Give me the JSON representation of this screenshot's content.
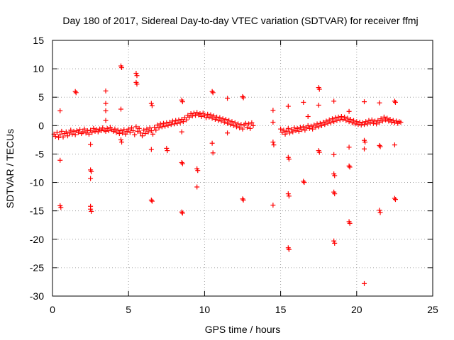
{
  "chart_data": {
    "type": "scatter",
    "title": "Day 180 of 2017, Sidereal Day-to-day VTEC variation (SDTVAR) for receiver ffmj",
    "xlabel": "GPS time / hours",
    "ylabel": "SDTVAR / TECUs",
    "xlim": [
      0,
      25
    ],
    "ylim": [
      -30,
      15
    ],
    "xticks": [
      0,
      5,
      10,
      15,
      20,
      25
    ],
    "yticks": [
      -30,
      -25,
      -20,
      -15,
      -10,
      -5,
      0,
      5,
      10,
      15
    ],
    "grid": true,
    "marker": "+",
    "color": "#ff0000",
    "series": [
      {
        "name": "SDTVAR",
        "points": [
          [
            0.1,
            -1.5
          ],
          [
            0.2,
            -1.9
          ],
          [
            0.3,
            -1.2
          ],
          [
            0.4,
            -2.1
          ],
          [
            0.5,
            -1.6
          ],
          [
            0.6,
            -1.0
          ],
          [
            0.7,
            -2.0
          ],
          [
            0.8,
            -1.4
          ],
          [
            0.9,
            -1.1
          ],
          [
            1.0,
            -1.8
          ],
          [
            1.1,
            -1.3
          ],
          [
            1.2,
            -0.8
          ],
          [
            1.3,
            -1.5
          ],
          [
            1.4,
            -1.0
          ],
          [
            1.5,
            -1.6
          ],
          [
            1.6,
            -0.9
          ],
          [
            1.7,
            -1.2
          ],
          [
            1.8,
            -0.7
          ],
          [
            1.9,
            -1.4
          ],
          [
            2.0,
            -1.1
          ],
          [
            2.1,
            -0.6
          ],
          [
            2.2,
            -1.3
          ],
          [
            2.3,
            -0.9
          ],
          [
            2.4,
            -1.5
          ],
          [
            2.5,
            -0.8
          ],
          [
            2.6,
            -1.2
          ],
          [
            2.7,
            -0.5
          ],
          [
            2.8,
            -1.0
          ],
          [
            2.9,
            -0.7
          ],
          [
            3.0,
            -1.1
          ],
          [
            3.1,
            -0.6
          ],
          [
            3.2,
            -0.9
          ],
          [
            3.3,
            -0.4
          ],
          [
            3.4,
            -0.8
          ],
          [
            3.5,
            -1.0
          ],
          [
            3.6,
            -0.5
          ],
          [
            3.7,
            -0.9
          ],
          [
            3.8,
            -0.3
          ],
          [
            3.9,
            -0.7
          ],
          [
            4.0,
            -1.0
          ],
          [
            4.1,
            -0.6
          ],
          [
            4.2,
            -1.2
          ],
          [
            4.3,
            -0.8
          ],
          [
            4.4,
            -1.4
          ],
          [
            4.5,
            -0.9
          ],
          [
            4.6,
            -1.3
          ],
          [
            4.7,
            -0.7
          ],
          [
            4.8,
            -1.5
          ],
          [
            4.9,
            -1.0
          ],
          [
            5.0,
            -0.6
          ],
          [
            5.1,
            -1.2
          ],
          [
            5.2,
            -0.4
          ],
          [
            5.3,
            -0.9
          ],
          [
            5.4,
            -1.6
          ],
          [
            5.5,
            -0.2
          ],
          [
            5.6,
            -1.0
          ],
          [
            5.7,
            -0.5
          ],
          [
            5.8,
            -1.3
          ],
          [
            5.9,
            -1.8
          ],
          [
            6.0,
            -0.8
          ],
          [
            6.1,
            -1.4
          ],
          [
            6.2,
            -0.6
          ],
          [
            6.3,
            -1.1
          ],
          [
            6.4,
            -0.4
          ],
          [
            6.5,
            -0.9
          ],
          [
            6.6,
            -1.5
          ],
          [
            6.7,
            -0.3
          ],
          [
            6.8,
            -0.8
          ],
          [
            6.9,
            0.1
          ],
          [
            7.0,
            -0.4
          ],
          [
            7.1,
            0.3
          ],
          [
            7.2,
            -0.2
          ],
          [
            7.3,
            0.4
          ],
          [
            7.4,
            -0.1
          ],
          [
            7.5,
            0.5
          ],
          [
            7.6,
            0.0
          ],
          [
            7.7,
            0.6
          ],
          [
            7.8,
            0.2
          ],
          [
            7.9,
            0.8
          ],
          [
            8.0,
            0.3
          ],
          [
            8.1,
            0.9
          ],
          [
            8.2,
            0.4
          ],
          [
            8.3,
            1.0
          ],
          [
            8.4,
            0.5
          ],
          [
            8.5,
            1.1
          ],
          [
            8.6,
            0.7
          ],
          [
            8.7,
            1.4
          ],
          [
            8.8,
            1.0
          ],
          [
            8.9,
            1.8
          ],
          [
            9.0,
            1.5
          ],
          [
            9.1,
            2.1
          ],
          [
            9.2,
            1.7
          ],
          [
            9.3,
            2.2
          ],
          [
            9.4,
            1.8
          ],
          [
            9.5,
            2.3
          ],
          [
            9.6,
            1.9
          ],
          [
            9.7,
            2.1
          ],
          [
            9.8,
            1.6
          ],
          [
            9.9,
            2.2
          ],
          [
            10.0,
            1.8
          ],
          [
            10.1,
            1.4
          ],
          [
            10.2,
            2.0
          ],
          [
            10.3,
            1.5
          ],
          [
            10.4,
            1.9
          ],
          [
            10.5,
            1.3
          ],
          [
            10.6,
            1.7
          ],
          [
            10.7,
            1.1
          ],
          [
            10.8,
            1.5
          ],
          [
            10.9,
            0.9
          ],
          [
            11.0,
            1.4
          ],
          [
            11.1,
            0.8
          ],
          [
            11.2,
            1.2
          ],
          [
            11.3,
            0.6
          ],
          [
            11.4,
            1.1
          ],
          [
            11.5,
            0.4
          ],
          [
            11.6,
            0.9
          ],
          [
            11.7,
            0.2
          ],
          [
            11.8,
            0.7
          ],
          [
            11.9,
            0.0
          ],
          [
            12.0,
            0.5
          ],
          [
            12.1,
            -0.2
          ],
          [
            12.2,
            0.3
          ],
          [
            12.3,
            -0.4
          ],
          [
            12.4,
            0.2
          ],
          [
            12.5,
            -0.6
          ],
          [
            12.6,
            0.1
          ],
          [
            12.7,
            0.4
          ],
          [
            12.8,
            -0.3
          ],
          [
            12.9,
            0.3
          ],
          [
            13.0,
            -0.5
          ],
          [
            13.1,
            0.5
          ],
          [
            13.2,
            0.0
          ],
          [
            15.0,
            -0.6
          ],
          [
            15.1,
            -1.2
          ],
          [
            15.2,
            -0.8
          ],
          [
            15.3,
            -1.5
          ],
          [
            15.4,
            -1.0
          ],
          [
            15.5,
            -0.5
          ],
          [
            15.6,
            -1.3
          ],
          [
            15.7,
            -0.7
          ],
          [
            15.8,
            -1.1
          ],
          [
            15.9,
            -0.4
          ],
          [
            16.0,
            -0.9
          ],
          [
            16.1,
            -0.5
          ],
          [
            16.2,
            -1.0
          ],
          [
            16.3,
            -0.3
          ],
          [
            16.4,
            -0.7
          ],
          [
            16.5,
            -0.2
          ],
          [
            16.6,
            -0.8
          ],
          [
            16.7,
            -0.4
          ],
          [
            16.8,
            0.0
          ],
          [
            16.9,
            -0.5
          ],
          [
            17.0,
            -0.1
          ],
          [
            17.1,
            -0.6
          ],
          [
            17.2,
            0.1
          ],
          [
            17.3,
            -0.3
          ],
          [
            17.4,
            0.3
          ],
          [
            17.5,
            -0.2
          ],
          [
            17.6,
            0.4
          ],
          [
            17.7,
            0.0
          ],
          [
            17.8,
            0.6
          ],
          [
            17.9,
            0.2
          ],
          [
            18.0,
            0.8
          ],
          [
            18.1,
            0.4
          ],
          [
            18.2,
            1.0
          ],
          [
            18.3,
            0.5
          ],
          [
            18.4,
            1.2
          ],
          [
            18.5,
            0.7
          ],
          [
            18.6,
            1.4
          ],
          [
            18.7,
            0.9
          ],
          [
            18.8,
            1.5
          ],
          [
            18.9,
            1.0
          ],
          [
            19.0,
            1.6
          ],
          [
            19.1,
            1.1
          ],
          [
            19.2,
            1.5
          ],
          [
            19.3,
            0.9
          ],
          [
            19.4,
            1.3
          ],
          [
            19.5,
            0.7
          ],
          [
            19.6,
            1.1
          ],
          [
            19.7,
            0.5
          ],
          [
            19.8,
            0.9
          ],
          [
            19.9,
            0.3
          ],
          [
            20.0,
            0.7
          ],
          [
            20.1,
            0.2
          ],
          [
            20.2,
            0.6
          ],
          [
            20.3,
            0.1
          ],
          [
            20.4,
            0.5
          ],
          [
            20.5,
            0.2
          ],
          [
            20.6,
            0.7
          ],
          [
            20.7,
            0.3
          ],
          [
            20.8,
            0.9
          ],
          [
            20.9,
            0.5
          ],
          [
            21.0,
            1.0
          ],
          [
            21.1,
            0.4
          ],
          [
            21.2,
            0.8
          ],
          [
            21.3,
            0.3
          ],
          [
            21.4,
            0.9
          ],
          [
            21.5,
            0.6
          ],
          [
            21.6,
            1.2
          ],
          [
            21.7,
            0.8
          ],
          [
            21.8,
            1.5
          ],
          [
            21.9,
            1.0
          ],
          [
            22.0,
            1.3
          ],
          [
            22.1,
            0.8
          ],
          [
            22.2,
            1.1
          ],
          [
            22.3,
            0.6
          ],
          [
            22.4,
            0.9
          ],
          [
            22.5,
            0.5
          ],
          [
            22.6,
            0.8
          ],
          [
            22.7,
            0.4
          ],
          [
            22.8,
            0.7
          ],
          [
            22.9,
            0.6
          ],
          [
            0.5,
            2.6
          ],
          [
            0.5,
            -6.1
          ],
          [
            0.5,
            -14.1
          ],
          [
            0.55,
            -14.4
          ],
          [
            1.5,
            6.0
          ],
          [
            1.55,
            5.8
          ],
          [
            2.5,
            -3.3
          ],
          [
            2.5,
            -7.8
          ],
          [
            2.55,
            -8.1
          ],
          [
            2.5,
            -9.3
          ],
          [
            2.5,
            -14.2
          ],
          [
            2.5,
            -14.7
          ],
          [
            2.55,
            -15.1
          ],
          [
            3.5,
            6.1
          ],
          [
            3.5,
            3.9
          ],
          [
            3.5,
            2.6
          ],
          [
            3.5,
            0.9
          ],
          [
            4.5,
            10.5
          ],
          [
            4.55,
            10.2
          ],
          [
            4.5,
            2.9
          ],
          [
            4.5,
            -2.5
          ],
          [
            4.55,
            -2.9
          ],
          [
            5.5,
            9.2
          ],
          [
            5.55,
            8.8
          ],
          [
            5.5,
            7.6
          ],
          [
            5.55,
            7.3
          ],
          [
            6.5,
            3.9
          ],
          [
            6.55,
            3.5
          ],
          [
            6.5,
            -4.2
          ],
          [
            6.5,
            -13.1
          ],
          [
            6.55,
            -13.3
          ],
          [
            7.5,
            -4.0
          ],
          [
            7.55,
            -4.4
          ],
          [
            8.5,
            4.5
          ],
          [
            8.55,
            4.2
          ],
          [
            8.5,
            -1.1
          ],
          [
            8.5,
            -6.5
          ],
          [
            8.55,
            -6.7
          ],
          [
            8.5,
            -15.2
          ],
          [
            8.55,
            -15.4
          ],
          [
            9.5,
            -7.6
          ],
          [
            9.55,
            -7.9
          ],
          [
            9.5,
            -10.8
          ],
          [
            10.5,
            6.0
          ],
          [
            10.55,
            5.8
          ],
          [
            10.5,
            -3.1
          ],
          [
            10.55,
            -4.8
          ],
          [
            11.5,
            4.8
          ],
          [
            11.5,
            -1.3
          ],
          [
            12.5,
            5.1
          ],
          [
            12.55,
            4.9
          ],
          [
            12.5,
            -12.9
          ],
          [
            12.55,
            -13.1
          ],
          [
            14.5,
            2.7
          ],
          [
            14.5,
            0.6
          ],
          [
            14.5,
            -2.9
          ],
          [
            14.55,
            -3.4
          ],
          [
            14.5,
            -14.0
          ],
          [
            15.5,
            3.4
          ],
          [
            15.5,
            -5.6
          ],
          [
            15.55,
            -5.9
          ],
          [
            15.5,
            -12.0
          ],
          [
            15.55,
            -12.4
          ],
          [
            15.5,
            -21.5
          ],
          [
            15.55,
            -21.8
          ],
          [
            16.5,
            4.1
          ],
          [
            16.5,
            -9.8
          ],
          [
            16.55,
            -10.0
          ],
          [
            16.8,
            1.6
          ],
          [
            17.5,
            6.7
          ],
          [
            17.55,
            6.4
          ],
          [
            17.5,
            3.6
          ],
          [
            17.5,
            -4.4
          ],
          [
            17.55,
            -4.7
          ],
          [
            18.5,
            4.3
          ],
          [
            18.5,
            -5.1
          ],
          [
            18.5,
            -8.5
          ],
          [
            18.55,
            -8.8
          ],
          [
            18.5,
            -11.7
          ],
          [
            18.55,
            -12.0
          ],
          [
            18.5,
            -20.3
          ],
          [
            18.55,
            -20.7
          ],
          [
            19.5,
            2.5
          ],
          [
            19.5,
            -3.8
          ],
          [
            19.5,
            -7.1
          ],
          [
            19.55,
            -7.3
          ],
          [
            19.5,
            -16.9
          ],
          [
            19.55,
            -17.2
          ],
          [
            20.5,
            4.2
          ],
          [
            20.5,
            -2.6
          ],
          [
            20.55,
            -2.9
          ],
          [
            20.5,
            -4.1
          ],
          [
            20.5,
            -27.8
          ],
          [
            21.5,
            4.0
          ],
          [
            21.5,
            -3.5
          ],
          [
            21.55,
            -3.7
          ],
          [
            21.5,
            -14.9
          ],
          [
            21.55,
            -15.3
          ],
          [
            22.5,
            4.3
          ],
          [
            22.55,
            4.1
          ],
          [
            22.5,
            -3.4
          ],
          [
            22.5,
            -12.8
          ],
          [
            22.55,
            -13.0
          ]
        ]
      }
    ]
  }
}
